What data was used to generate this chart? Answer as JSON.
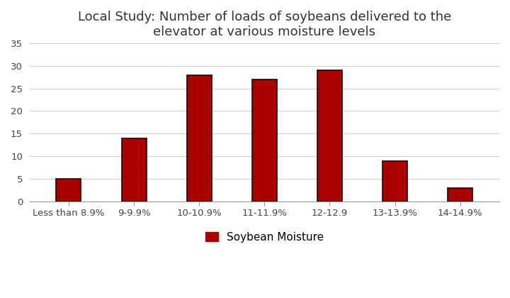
{
  "title": "Local Study: Number of loads of soybeans delivered to the\nelevator at various moisture levels",
  "categories": [
    "Less than 8.9%",
    "9-9.9%",
    "10-10.9%",
    "11-11.9%",
    "12-12.9",
    "13-13.9%",
    "14-14.9%"
  ],
  "values": [
    5,
    14,
    28,
    27,
    29,
    9,
    3
  ],
  "bar_color": "#AA0000",
  "bar_edge_color": "#220000",
  "ylim": [
    0,
    35
  ],
  "yticks": [
    0,
    5,
    10,
    15,
    20,
    25,
    30,
    35
  ],
  "legend_label": "Soybean Moisture",
  "background_color": "#ffffff",
  "title_fontsize": 13,
  "tick_fontsize": 9.5,
  "legend_fontsize": 11,
  "grid_color": "#d0d0d0"
}
